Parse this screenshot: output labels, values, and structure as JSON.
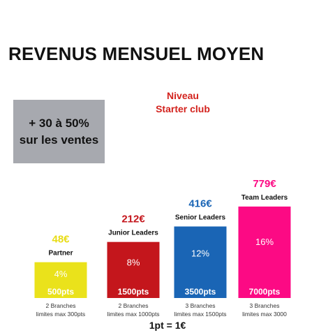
{
  "page": {
    "title": "REVENUS MENSUEL MOYEN",
    "level_line1": "Niveau",
    "level_line2": "Starter club",
    "promo_line1": "+ 30 à 50%",
    "promo_line2": "sur les ventes",
    "footer": "1pt = 1€"
  },
  "colors": {
    "title": "#111111",
    "level_text": "#d3221d",
    "promo_box": "#a7a9af"
  },
  "chart_data": {
    "type": "bar",
    "title": "REVENUS MENSUEL MOYEN",
    "categories": [
      "Partner",
      "Junior Leaders",
      "Senior Leaders",
      "Team Leaders"
    ],
    "values": [
      48,
      212,
      416,
      779
    ],
    "unit": "€",
    "value_labels": [
      "48€",
      "212€",
      "416€",
      "779€"
    ],
    "percent_labels": [
      "4%",
      "8%",
      "12%",
      "16%"
    ],
    "points_labels": [
      "500pts",
      "1500pts",
      "3500pts",
      "7000pts"
    ],
    "notes": [
      [
        "2 Branches",
        "limites max  300pts"
      ],
      [
        "2 Branches",
        "limites max 1000pts"
      ],
      [
        "3 Branches",
        "limites max 1500pts"
      ],
      [
        "3 Branches",
        "limites max 3000"
      ]
    ],
    "bar_colors": [
      "#eae21b",
      "#c4161c",
      "#1a65b5",
      "#fc0a84"
    ],
    "value_label_colors": [
      "#e8dc13",
      "#c4161c",
      "#1a65b5",
      "#fc0a84"
    ],
    "percent_label_colors": [
      "#ffffff",
      "#ffffff",
      "#ffffff",
      "#ffffff"
    ],
    "points_label_colors": [
      "#ffffff",
      "#ffffff",
      "#ffffff",
      "#ffffff"
    ],
    "xlabel": "",
    "ylabel": ""
  }
}
